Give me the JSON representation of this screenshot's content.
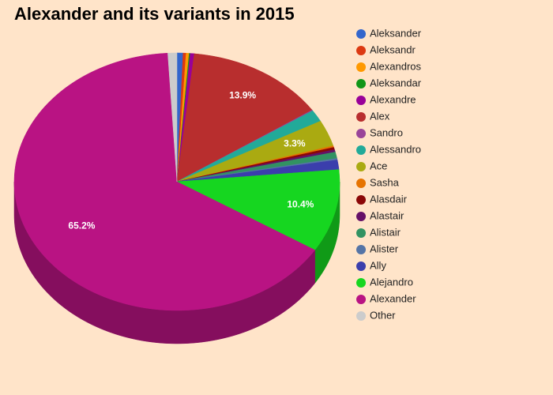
{
  "chart_data": {
    "type": "pie3d",
    "title": "Alexander and its variants in 2015",
    "categories": [
      "Aleksander",
      "Aleksandr",
      "Alexandros",
      "Aleksandar",
      "Alexandre",
      "Alex",
      "Sandro",
      "Alessandro",
      "Ace",
      "Sasha",
      "Alasdair",
      "Alastair",
      "Alistair",
      "Alister",
      "Ally",
      "Alejandro",
      "Alexander",
      "Other"
    ],
    "values": [
      0.6,
      0.3,
      0.3,
      0.1,
      0.4,
      13.9,
      0.1,
      1.5,
      3.3,
      0.2,
      0.3,
      0.3,
      0.8,
      0.2,
      1.2,
      10.4,
      65.2,
      0.9
    ],
    "value_labels": [
      null,
      null,
      null,
      null,
      null,
      "13.9%",
      null,
      null,
      "3.3%",
      null,
      null,
      null,
      null,
      null,
      null,
      "10.4%",
      "65.2%",
      null
    ],
    "colors": [
      "#3366cc",
      "#dc3912",
      "#ff9900",
      "#109618",
      "#990099",
      "#b82e2e",
      "#994499",
      "#22aa99",
      "#aaaa11",
      "#e67300",
      "#8b0707",
      "#651067",
      "#329262",
      "#5574a6",
      "#3b3eac",
      "#16d620",
      "#b91383",
      "#cccccc"
    ]
  }
}
